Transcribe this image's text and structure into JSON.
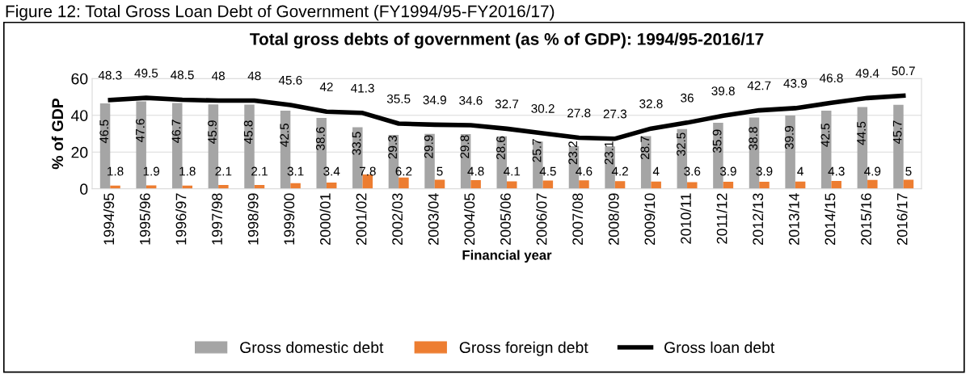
{
  "chart_data": {
    "type": "bar",
    "title": "Total gross debts of government (as % of GDP): 1994/95-2016/17",
    "xlabel": "Financial year",
    "ylabel": "% of GDP",
    "annotations": [
      "Figure 12: Total Gross Loan Debt of Government (FY1994/95-FY2016/17)"
    ],
    "categories": [
      "1994/95",
      "1995/96",
      "1996/97",
      "1997/98",
      "1998/99",
      "1999/00",
      "2000/01",
      "2001/02",
      "2002/03",
      "2003/04",
      "2004/05",
      "2005/06",
      "2006/07",
      "2007/08",
      "2008/09",
      "2009/10",
      "2010/11",
      "2011/12",
      "2012/13",
      "2013/14",
      "2014/15",
      "2015/16",
      "2016/17"
    ],
    "series": [
      {
        "name": "Gross domestic debt",
        "color": "#a5a5a5",
        "values": [
          46.5,
          47.6,
          46.7,
          45.9,
          45.8,
          42.5,
          38.6,
          33.5,
          29.3,
          29.9,
          29.8,
          28.6,
          25.7,
          23.2,
          23.1,
          28.7,
          32.5,
          35.9,
          38.8,
          39.9,
          42.5,
          44.5,
          45.7
        ]
      },
      {
        "name": "Gross foreign debt",
        "color": "#ed7d31",
        "values": [
          1.8,
          1.9,
          1.8,
          2.1,
          2.1,
          3.1,
          3.4,
          7.8,
          6.2,
          5,
          4.8,
          4.1,
          4.5,
          4.6,
          4.2,
          4,
          3.6,
          3.9,
          3.9,
          4,
          4.3,
          4.9,
          5
        ]
      },
      {
        "name": "Gross loan debt",
        "type": "line",
        "color": "#000000",
        "values": [
          48.3,
          49.5,
          48.5,
          48,
          48,
          45.6,
          42,
          41.3,
          35.5,
          34.9,
          34.6,
          32.7,
          30.2,
          27.8,
          27.3,
          32.8,
          36,
          39.8,
          42.7,
          43.9,
          46.8,
          49.4,
          50.7
        ]
      }
    ],
    "ylim": [
      0,
      60
    ],
    "yticks": [
      0,
      20,
      40,
      60
    ],
    "grid": "y",
    "legend": "bottom",
    "data_labels": true
  }
}
